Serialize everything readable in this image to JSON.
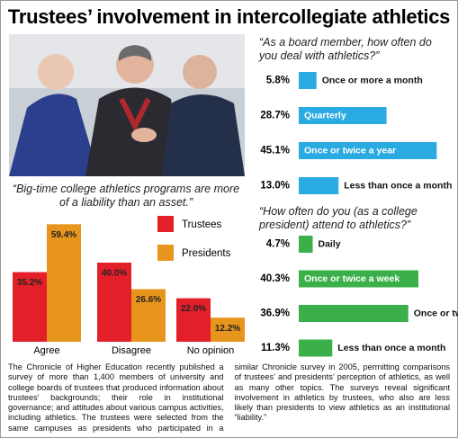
{
  "header": {
    "title": "Trustees’ involvement in intercollegiate athletics"
  },
  "chart_data": [
    {
      "type": "bar",
      "title": "“Big-time college athletics programs are more of a liability than an asset.”",
      "categories": [
        "Agree",
        "Disagree",
        "No opinion"
      ],
      "series": [
        {
          "name": "Trustees",
          "color": "#e3202a",
          "values": [
            35.2,
            40.0,
            22.0
          ],
          "value_labels": [
            "35.2%",
            "40.0%",
            "22.0%"
          ]
        },
        {
          "name": "Presidents",
          "color": "#e8951e",
          "values": [
            59.4,
            26.6,
            12.2
          ],
          "value_labels": [
            "59.4%",
            "26.6%",
            "12.2%"
          ]
        }
      ]
    },
    {
      "type": "hbar",
      "title": "“As a board member, how often do you deal with athletics?”",
      "categories": [
        "Once or more a month",
        "Quarterly",
        "Once or twice a year",
        "Less than once a month"
      ],
      "values": [
        5.8,
        28.7,
        45.1,
        13.0
      ],
      "value_labels": [
        "5.8%",
        "28.7%",
        "45.1%",
        "13.0%"
      ],
      "color": "#29aae1"
    },
    {
      "type": "hbar",
      "title": "“How often do you (as a college president) attend to athletics?”",
      "categories": [
        "Daily",
        "Once or twice a week",
        "Once or twice a month",
        "Less than once a month"
      ],
      "values": [
        4.7,
        40.3,
        36.9,
        11.3
      ],
      "value_labels": [
        "4.7%",
        "40.3%",
        "36.9%",
        "11.3%"
      ],
      "color": "#3bb04a"
    }
  ],
  "article": {
    "text": "The Chronicle of Higher Education recently published a survey of more than 1,400 members of university and college boards of trustees that produced information about trustees’ backgrounds; their role in institutional governance; and attitudes about various campus activities, including athletics. The trustees were selected from the same campuses as presidents who participated in a similar Chronicle survey in 2005, permitting comparisons of trustees’ and presidents’ perception of athletics, as well as many other topics. The surveys reveal significant involvement in athletics by trustees, who also are less likely than presidents to view athletics as an institutional “liability.”"
  }
}
